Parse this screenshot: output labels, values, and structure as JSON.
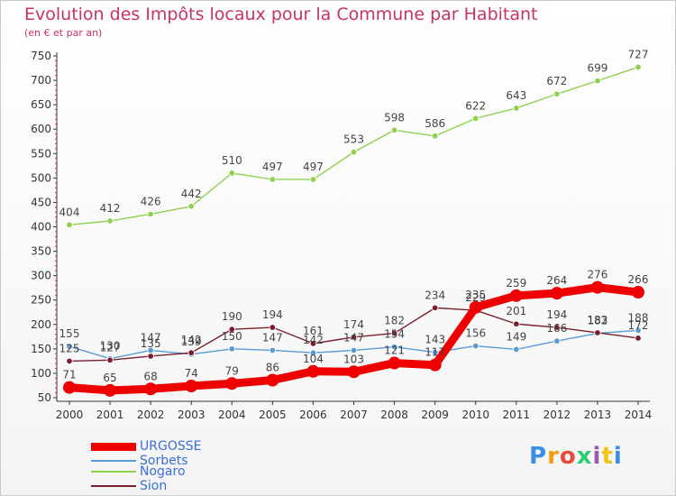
{
  "title": "Evolution des Impôts locaux pour la Commune par Habitant",
  "subtitle": "(en € et par an)",
  "logo": {
    "text": "Proxiti",
    "colors": [
      "#3a8ee6",
      "#f39c12",
      "#e74c3c",
      "#2ecc71",
      "#9b59b6",
      "#f1c40f",
      "#3a8ee6"
    ]
  },
  "chart_data": {
    "type": "line",
    "title": "Evolution des Impôts locaux pour la Commune par Habitant",
    "subtitle": "(en € et par an)",
    "x": [
      "2000",
      "2001",
      "2002",
      "2003",
      "2004",
      "2005",
      "2006",
      "2007",
      "2008",
      "2009",
      "2010",
      "2011",
      "2012",
      "2013",
      "2014"
    ],
    "ylim": [
      50,
      750
    ],
    "yticks": [
      50,
      100,
      150,
      200,
      250,
      300,
      350,
      400,
      450,
      500,
      550,
      600,
      650,
      700,
      750
    ],
    "grid": false,
    "legend_position": "bottom-left",
    "series": [
      {
        "name": "URGOSSE",
        "color": "#ee0000",
        "values": [
          71,
          65,
          68,
          74,
          79,
          86,
          104,
          103,
          121,
          117,
          235,
          259,
          264,
          276,
          266
        ]
      },
      {
        "name": "Sorbets",
        "color": "#5b9bd5",
        "values": [
          155,
          130,
          147,
          139,
          150,
          147,
          142,
          147,
          154,
          143,
          156,
          149,
          166,
          182,
          188
        ]
      },
      {
        "name": "Nogaro",
        "color": "#8fd14f",
        "values": [
          404,
          412,
          426,
          442,
          510,
          497,
          497,
          553,
          598,
          586,
          622,
          643,
          672,
          699,
          727
        ]
      },
      {
        "name": "Sion",
        "color": "#7b1e2e",
        "values": [
          125,
          127,
          135,
          142,
          190,
          194,
          161,
          174,
          182,
          234,
          229,
          201,
          194,
          183,
          172
        ]
      }
    ]
  }
}
